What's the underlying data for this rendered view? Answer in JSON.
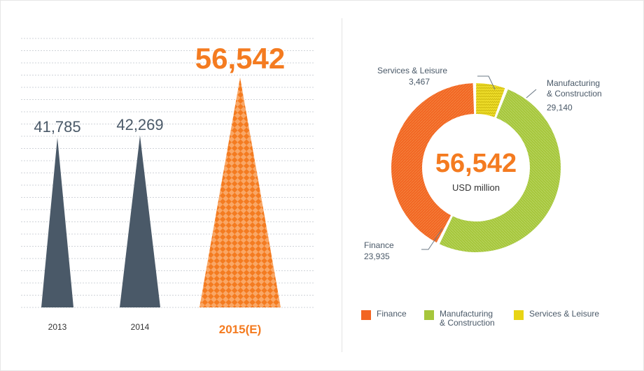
{
  "chart_data": [
    {
      "type": "bar",
      "categories": [
        "2013",
        "2014",
        "2015(E)"
      ],
      "values": [
        41785,
        42269,
        56542
      ],
      "value_labels": [
        "41,785",
        "42,269",
        "56,542"
      ],
      "colors": [
        "#4a5968",
        "#4a5968",
        "#f47b20"
      ],
      "highlight_index": 2,
      "grid": true,
      "title": "",
      "xlabel": "",
      "ylabel": ""
    },
    {
      "type": "pie",
      "style": "donut",
      "center_value": "56,542",
      "center_unit": "USD million",
      "slices": [
        {
          "name": "Finance",
          "value": 23935,
          "label": "23,935",
          "color": "#f26522"
        },
        {
          "name": "Manufacturing\n& Construction",
          "value": 29140,
          "label": "29,140",
          "color": "#a6c63b"
        },
        {
          "name": "Services & Leisure",
          "value": 3467,
          "label": "3,467",
          "color": "#e8d414"
        }
      ],
      "legend_position": "bottom"
    }
  ]
}
